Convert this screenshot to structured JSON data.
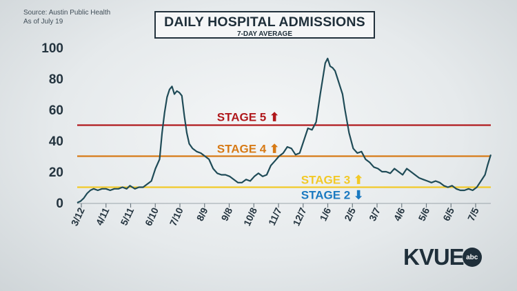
{
  "source": {
    "line1": "Source: Austin Public Health",
    "line2": "As of July 19"
  },
  "header": {
    "title": "DAILY HOSPITAL ADMISSIONS",
    "subtitle": "7-DAY AVERAGE"
  },
  "logo": {
    "text": "KVUE",
    "badge": "abc"
  },
  "colors": {
    "line": "#1f4b57",
    "stage5": "#b0181c",
    "stage4": "#d77a16",
    "stage3": "#f2c927",
    "stage2": "#1a79c0"
  },
  "chart_data": {
    "type": "line",
    "x_tick_labels": [
      "3/12",
      "4/11",
      "5/11",
      "6/10",
      "7/10",
      "8/9",
      "9/8",
      "10/8",
      "11/7",
      "12/7",
      "1/6",
      "2/5",
      "3/7",
      "4/6",
      "5/6",
      "6/5",
      "7/5"
    ],
    "ylim": [
      0,
      100
    ],
    "yticks": [
      0,
      20,
      40,
      60,
      80,
      100
    ],
    "series": [
      {
        "x": [
          0,
          4,
          8,
          12,
          16,
          20,
          25,
          30,
          35,
          40,
          45,
          50,
          55,
          60,
          64,
          70,
          75,
          80,
          85,
          90,
          95,
          100,
          103,
          106,
          109,
          112,
          115,
          118,
          121,
          124,
          127,
          130,
          133,
          136,
          140,
          145,
          150,
          155,
          160,
          165,
          170,
          175,
          180,
          185,
          190,
          195,
          200,
          205,
          210,
          215,
          220,
          225,
          230,
          235,
          240,
          245,
          250,
          255,
          260,
          265,
          270,
          275,
          280,
          285,
          290,
          295,
          298,
          301,
          304,
          307,
          310,
          313,
          316,
          319,
          322,
          325,
          330,
          335,
          340,
          345,
          350,
          355,
          360,
          365,
          370,
          375,
          380,
          385,
          390,
          395,
          400,
          405,
          410,
          415,
          420,
          425,
          430,
          435,
          440,
          445,
          450,
          455,
          460,
          465,
          470,
          475,
          480,
          485,
          490,
          495,
          498,
          502
        ],
        "y": [
          0,
          1,
          3,
          6,
          8,
          9,
          8,
          9,
          9,
          8,
          9,
          9,
          10,
          9,
          11,
          9,
          10,
          10,
          12,
          14,
          22,
          28,
          45,
          58,
          68,
          73,
          75,
          70,
          72,
          71,
          69,
          56,
          45,
          38,
          35,
          33,
          32,
          30,
          28,
          22,
          19,
          18,
          18,
          17,
          15,
          13,
          13,
          15,
          14,
          17,
          19,
          17,
          18,
          24,
          27,
          30,
          32,
          36,
          35,
          31,
          32,
          40,
          48,
          47,
          52,
          70,
          80,
          90,
          93,
          88,
          87,
          85,
          80,
          75,
          70,
          60,
          45,
          35,
          32,
          33,
          28,
          26,
          23,
          22,
          20,
          20,
          19,
          22,
          20,
          18,
          22,
          20,
          18,
          16,
          15,
          14,
          13,
          14,
          13,
          11,
          10,
          11,
          9,
          8,
          8,
          9,
          8,
          10,
          14,
          18,
          24,
          31
        ]
      }
    ],
    "reference_lines": [
      {
        "label": "STAGE 5 ⬆",
        "value": 50
      },
      {
        "label": "STAGE 4 ⬆",
        "value": 30
      },
      {
        "label": "STAGE 3 ⬆",
        "value": 10
      },
      {
        "label": "STAGE 2 ⬇",
        "value": 10
      }
    ]
  }
}
